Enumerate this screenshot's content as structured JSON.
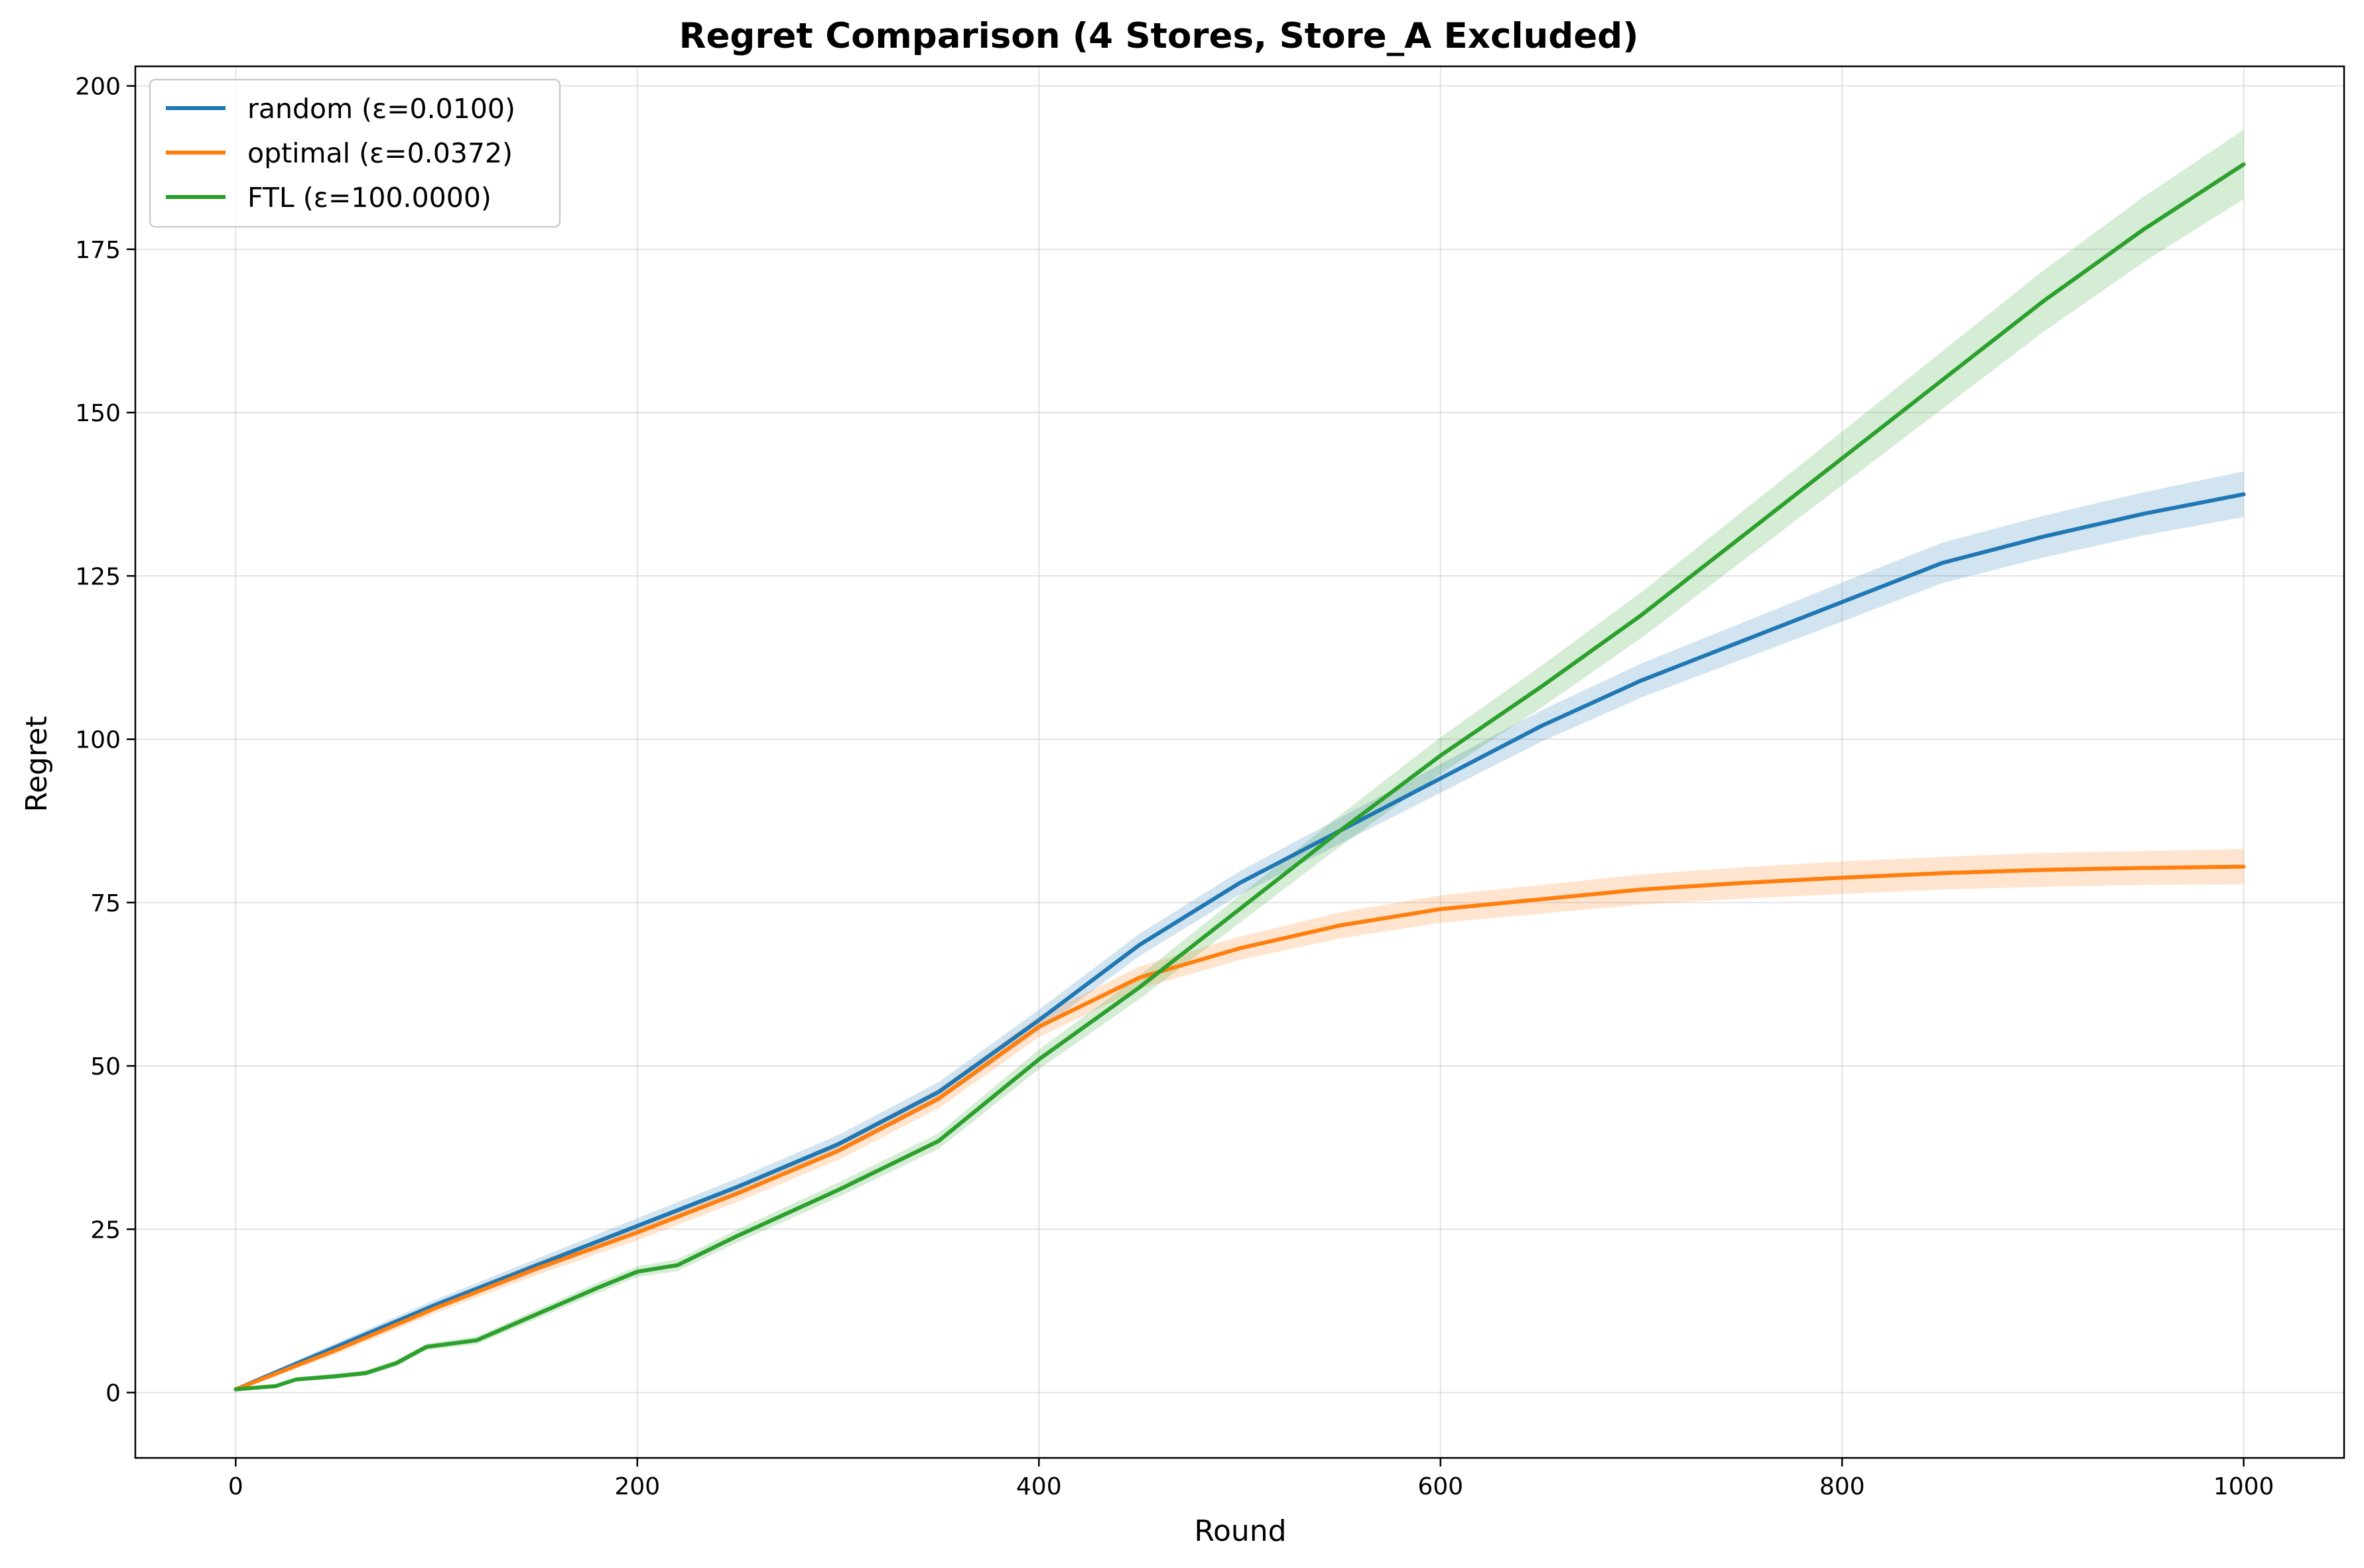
{
  "chart_data": {
    "type": "line",
    "title": "Regret Comparison (4 Stores, Store_A Excluded)",
    "xlabel": "Round",
    "ylabel": "Regret",
    "xlim": [
      -50,
      1050
    ],
    "ylim": [
      -10,
      203
    ],
    "xticks": [
      0,
      200,
      400,
      600,
      800,
      1000
    ],
    "yticks": [
      0,
      25,
      50,
      75,
      100,
      125,
      150,
      175,
      200
    ],
    "grid": true,
    "legend_position": "upper-left",
    "series": [
      {
        "name": "random (ε=0.0100)",
        "color": "#1f77b4",
        "x": [
          0,
          50,
          100,
          150,
          200,
          250,
          300,
          350,
          400,
          450,
          500,
          550,
          600,
          650,
          700,
          750,
          800,
          850,
          900,
          950,
          1000
        ],
        "y": [
          0.5,
          7,
          13.5,
          19.5,
          25.5,
          31.5,
          38,
          46,
          57,
          68.5,
          78,
          86,
          94,
          102,
          109,
          115,
          121,
          127,
          131,
          134.5,
          137.5
        ],
        "band": [
          0.3,
          0.6,
          0.8,
          1.0,
          1.2,
          1.3,
          1.4,
          1.5,
          1.6,
          1.7,
          1.8,
          2.0,
          2.2,
          2.4,
          2.6,
          2.8,
          3.0,
          3.1,
          3.2,
          3.3,
          3.5
        ]
      },
      {
        "name": "optimal (ε=0.0372)",
        "color": "#ff7f0e",
        "x": [
          0,
          50,
          100,
          150,
          200,
          250,
          300,
          350,
          400,
          450,
          500,
          550,
          600,
          650,
          700,
          750,
          800,
          850,
          900,
          950,
          1000
        ],
        "y": [
          0.5,
          6.5,
          13,
          19,
          24.5,
          30.5,
          37,
          45,
          56,
          63.5,
          68,
          71.5,
          74,
          75.5,
          77,
          78,
          78.8,
          79.5,
          80,
          80.3,
          80.5
        ],
        "band": [
          0.3,
          0.6,
          0.8,
          1.0,
          1.2,
          1.3,
          1.4,
          1.5,
          1.6,
          1.7,
          1.8,
          2.0,
          2.1,
          2.2,
          2.3,
          2.4,
          2.5,
          2.5,
          2.6,
          2.6,
          2.7
        ]
      },
      {
        "name": "FTL (ε=100.0000)",
        "color": "#2ca02c",
        "x": [
          0,
          20,
          30,
          50,
          65,
          80,
          95,
          120,
          150,
          180,
          200,
          220,
          250,
          300,
          350,
          400,
          450,
          500,
          550,
          600,
          650,
          700,
          750,
          800,
          850,
          900,
          950,
          1000
        ],
        "y": [
          0.5,
          1,
          2,
          2.5,
          3,
          4.5,
          7,
          8,
          12,
          16,
          18.5,
          19.5,
          24,
          31,
          38.5,
          51,
          62,
          74,
          86,
          97.5,
          108,
          119,
          131,
          143,
          155,
          167,
          178,
          188
        ],
        "band": [
          0.2,
          0.3,
          0.3,
          0.4,
          0.4,
          0.5,
          0.5,
          0.6,
          0.7,
          0.8,
          0.8,
          0.9,
          1.0,
          1.1,
          1.2,
          1.5,
          1.8,
          2.1,
          2.4,
          2.8,
          3.2,
          3.5,
          3.8,
          4.1,
          4.4,
          4.7,
          5.0,
          5.3
        ]
      }
    ]
  }
}
